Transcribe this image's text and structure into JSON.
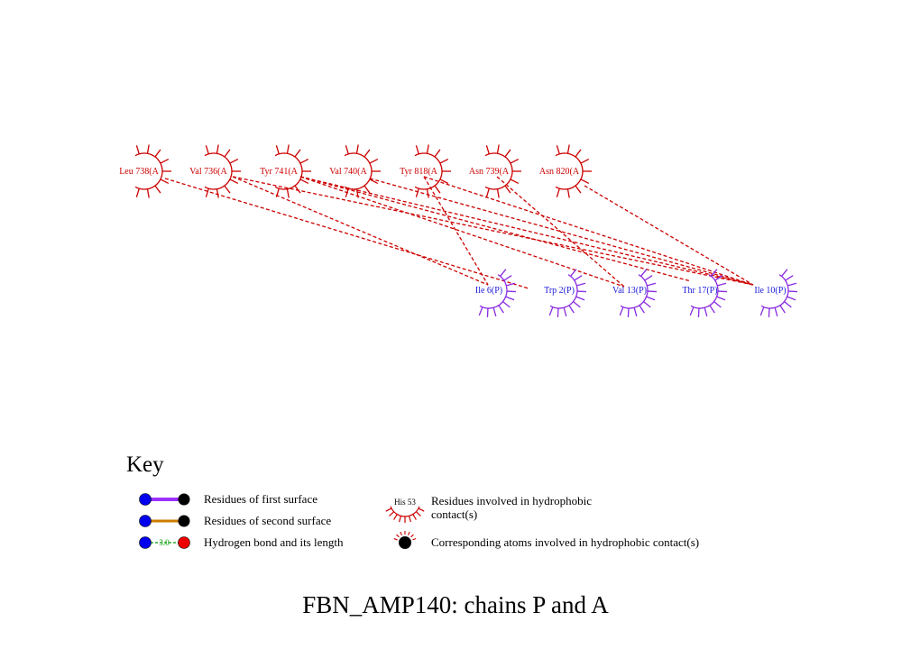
{
  "title": "FBN_AMP140: chains P and A",
  "colors": {
    "chain_a": "#cc0000",
    "chain_p": "#8a2be2",
    "chain_p_label": "#1a1adc",
    "contact_line": "#cc0000",
    "first_surface": "#9b30ff",
    "second_surface": "#cc7a00",
    "hbond": "#009900"
  },
  "chain_a_residues": [
    {
      "id": "leu738",
      "label": "Leu 738(A"
    },
    {
      "id": "val736",
      "label": "Val 736(A"
    },
    {
      "id": "tyr741",
      "label": "Tyr 741(A"
    },
    {
      "id": "val740",
      "label": "Val 740(A"
    },
    {
      "id": "tyr818",
      "label": "Tyr 818(A"
    },
    {
      "id": "asn739",
      "label": "Asn 739(A"
    },
    {
      "id": "asn820",
      "label": "Asn 820(A"
    }
  ],
  "chain_p_residues": [
    {
      "id": "ile6",
      "label": "Ile 6(P)"
    },
    {
      "id": "trp2",
      "label": "Trp 2(P)"
    },
    {
      "id": "val13",
      "label": "Val 13(P)"
    },
    {
      "id": "thr17",
      "label": "Thr 17(P)"
    },
    {
      "id": "ile10",
      "label": "Ile 10(P)"
    }
  ],
  "contacts": [
    [
      "leu738",
      "trp2"
    ],
    [
      "val736",
      "ile10"
    ],
    [
      "val736",
      "ile6"
    ],
    [
      "tyr741",
      "val13"
    ],
    [
      "tyr741",
      "ile10"
    ],
    [
      "tyr741",
      "thr17"
    ],
    [
      "val740",
      "ile10"
    ],
    [
      "tyr818",
      "ile6"
    ],
    [
      "tyr818",
      "ile10"
    ],
    [
      "asn739",
      "val13"
    ],
    [
      "asn820",
      "ile10"
    ]
  ],
  "key": {
    "title": "Key",
    "first_surface": "Residues of first surface",
    "second_surface": "Residues of second surface",
    "hbond": "Hydrogen bond and its length",
    "hbond_length": "3.0",
    "hydrophobic_residue": "Residues involved in hydrophobic",
    "hydrophobic_residue_2": "contact(s)",
    "example_residue": "His 53",
    "hydrophobic_atoms": "Corresponding atoms involved in hydrophobic contact(s)"
  }
}
